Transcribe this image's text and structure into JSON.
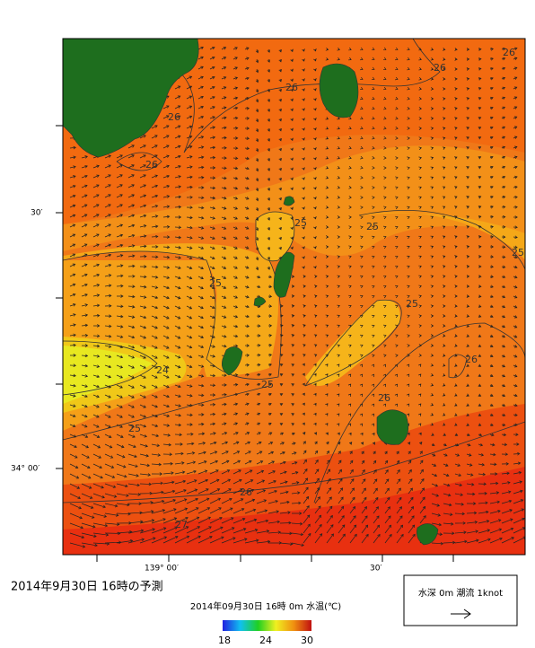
{
  "map": {
    "y_labels": [
      "30′",
      "34° 00′"
    ],
    "x_labels": [
      "139° 00′",
      "30′"
    ],
    "contour_labels": [
      "26",
      "26",
      "26",
      "26",
      "26",
      "25",
      "25",
      "25",
      "25",
      "25",
      "25",
      "25",
      "24",
      "26",
      "26",
      "26",
      "27"
    ]
  },
  "caption": "2014年9月30日 16時の予測",
  "colorbar": {
    "title": "2014年09月30日 16時 0m 水温(℃)",
    "ticks": [
      "18",
      "24",
      "30"
    ]
  },
  "legend": {
    "text": "水深 0m 潮流 1knot"
  }
}
